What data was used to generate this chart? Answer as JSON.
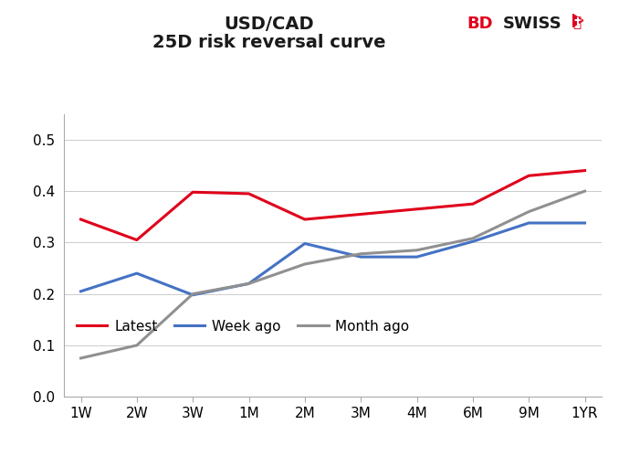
{
  "title_line1": "USD/CAD",
  "title_line2": "25D risk reversal curve",
  "x_labels": [
    "1W",
    "2W",
    "3W",
    "1M",
    "2M",
    "3M",
    "4M",
    "6M",
    "9M",
    "1YR"
  ],
  "latest": [
    0.345,
    0.305,
    0.398,
    0.395,
    0.345,
    0.355,
    0.365,
    0.375,
    0.43,
    0.44
  ],
  "week_ago": [
    0.205,
    0.24,
    0.198,
    0.22,
    0.298,
    0.272,
    0.272,
    0.302,
    0.338,
    0.338
  ],
  "month_ago": [
    0.075,
    0.1,
    0.2,
    0.22,
    0.258,
    0.278,
    0.285,
    0.308,
    0.36,
    0.4
  ],
  "color_latest": "#e0001b",
  "color_week_ago": "#4472c4",
  "color_month_ago": "#909090",
  "ylim": [
    0.0,
    0.55
  ],
  "yticks": [
    0.0,
    0.1,
    0.2,
    0.3,
    0.4,
    0.5
  ],
  "legend_labels": [
    "Latest",
    "Week ago",
    "Month ago"
  ],
  "line_width": 2.2,
  "bg_color": "#ffffff",
  "logo_color_bd": "#e0001b",
  "logo_color_swiss": "#1a1a1a",
  "title1_fontsize": 14,
  "title2_fontsize": 14,
  "tick_fontsize": 11,
  "legend_fontsize": 11
}
